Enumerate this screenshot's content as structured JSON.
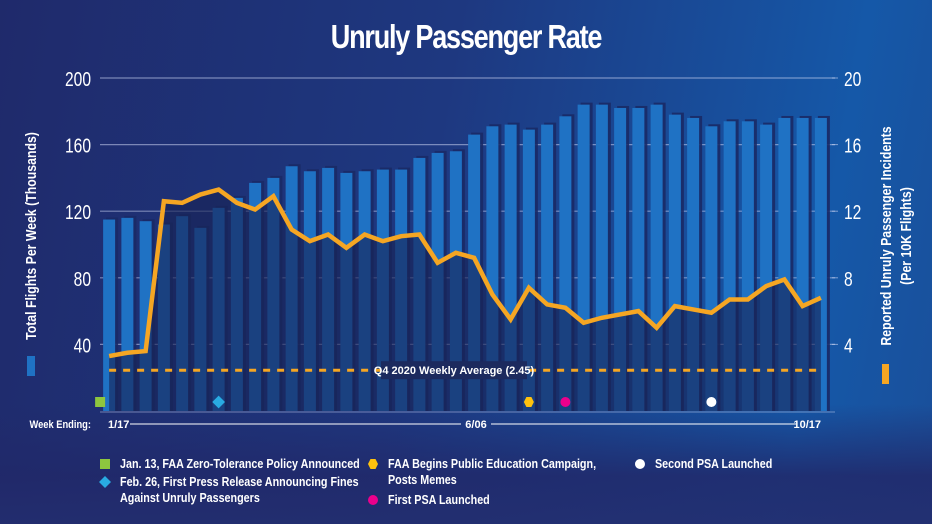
{
  "chart_data": {
    "type": "bar",
    "title": "Unruly Passenger Rate",
    "xlabel": "Week Ending:",
    "x_tick_labels": [
      "1/17",
      "6/06",
      "10/17"
    ],
    "x_tick_index": [
      0,
      20,
      39
    ],
    "ylabel_left": "Total Flights Per Week (Thousands)",
    "ylabel_right": "Reported Unruly Passenger Incidents (Per 10K Flights)",
    "ylim_left": [
      0,
      200
    ],
    "ylim_right": [
      0,
      20
    ],
    "yticks_left": [
      40,
      80,
      120,
      160,
      200
    ],
    "yticks_right": [
      4,
      8,
      12,
      16,
      20
    ],
    "grid": true,
    "series": [
      {
        "name": "Total Flights Per Week (Thousands)",
        "type": "bar",
        "axis": "left",
        "color": "#1f72c4",
        "values": [
          115,
          116,
          114,
          112,
          117,
          110,
          122,
          128,
          137,
          140,
          147,
          144,
          146,
          143,
          144,
          145,
          145,
          152,
          155,
          156,
          166,
          171,
          172,
          169,
          172,
          177,
          184,
          184,
          182,
          182,
          184,
          178,
          176,
          171,
          174,
          174,
          172,
          176,
          176,
          176
        ]
      },
      {
        "name": "Reported Unruly Passenger Incidents (Per 10K Flights)",
        "type": "line",
        "axis": "right",
        "color": "#f5a623",
        "values": [
          3.3,
          3.5,
          3.6,
          12.6,
          12.5,
          13.0,
          13.3,
          12.5,
          12.1,
          12.9,
          10.9,
          10.2,
          10.6,
          9.8,
          10.6,
          10.2,
          10.5,
          10.6,
          8.9,
          9.5,
          9.2,
          7.0,
          5.5,
          7.4,
          6.4,
          6.2,
          5.3,
          5.6,
          5.8,
          6.0,
          5.0,
          6.3,
          6.1,
          5.9,
          6.7,
          6.7,
          7.5,
          7.9,
          6.3,
          6.8
        ]
      }
    ],
    "reference_line": {
      "label": "Q4 2020 Weekly Average (2.45)",
      "value": 2.45,
      "axis": "right",
      "color": "#f5a623"
    },
    "events": [
      {
        "label": "Jan. 13, FAA Zero-Tolerance Policy Announced",
        "shape": "square",
        "color": "#8dc63f",
        "index": 0
      },
      {
        "label": "Feb. 26, First Press Release Announcing Fines Against Unruly Passengers",
        "shape": "diamond",
        "color": "#29abe2",
        "index": 6
      },
      {
        "label": "FAA Begins Public Education Campaign, Posts Memes",
        "shape": "hexagon",
        "color": "#ffc20e",
        "index": 23
      },
      {
        "label": "First PSA Launched",
        "shape": "circle",
        "color": "#ec008c",
        "index": 25
      },
      {
        "label": "Second PSA Launched",
        "shape": "circle",
        "color": "#ffffff",
        "index": 33
      }
    ]
  },
  "legend": {
    "col1": [
      {
        "label": "Jan. 13, FAA Zero-Tolerance Policy Announced",
        "icon": "green-square-icon"
      },
      {
        "label": "Feb. 26, First Press Release Announcing Fines",
        "label2": "Against Unruly Passengers",
        "icon": "blue-diamond-icon"
      }
    ],
    "col2": [
      {
        "label": "FAA Begins Public Education Campaign,",
        "label2": "Posts Memes",
        "icon": "yellow-hexagon-icon"
      },
      {
        "label": "First PSA Launched",
        "icon": "pink-circle-icon"
      }
    ],
    "col3": [
      {
        "label": "Second PSA Launched",
        "icon": "white-circle-icon"
      }
    ]
  }
}
